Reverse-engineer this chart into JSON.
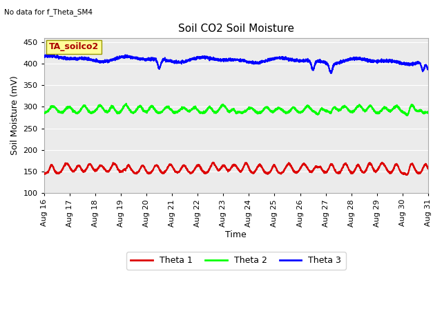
{
  "title": "Soil CO2 Soil Moisture",
  "ylabel": "Soil Moisture (mV)",
  "xlabel": "Time",
  "top_left_text": "No data for f_Theta_SM4",
  "annotation_text": "TA_soilco2",
  "annotation_bg": "#ffff99",
  "annotation_text_color": "#aa0000",
  "annotation_border_color": "#999900",
  "ylim": [
    100,
    460
  ],
  "days": 15,
  "x_tick_labels": [
    "Aug 16",
    "Aug 17",
    "Aug 18",
    "Aug 19",
    "Aug 20",
    "Aug 21",
    "Aug 22",
    "Aug 23",
    "Aug 24",
    "Aug 25",
    "Aug 26",
    "Aug 27",
    "Aug 28",
    "Aug 29",
    "Aug 30",
    "Aug 31"
  ],
  "bg_color": "#ebebeb",
  "line1_color": "#dd0000",
  "line2_color": "#00ff00",
  "line3_color": "#0000ff",
  "legend_labels": [
    "Theta 1",
    "Theta 2",
    "Theta 3"
  ],
  "line_width": 1.5
}
